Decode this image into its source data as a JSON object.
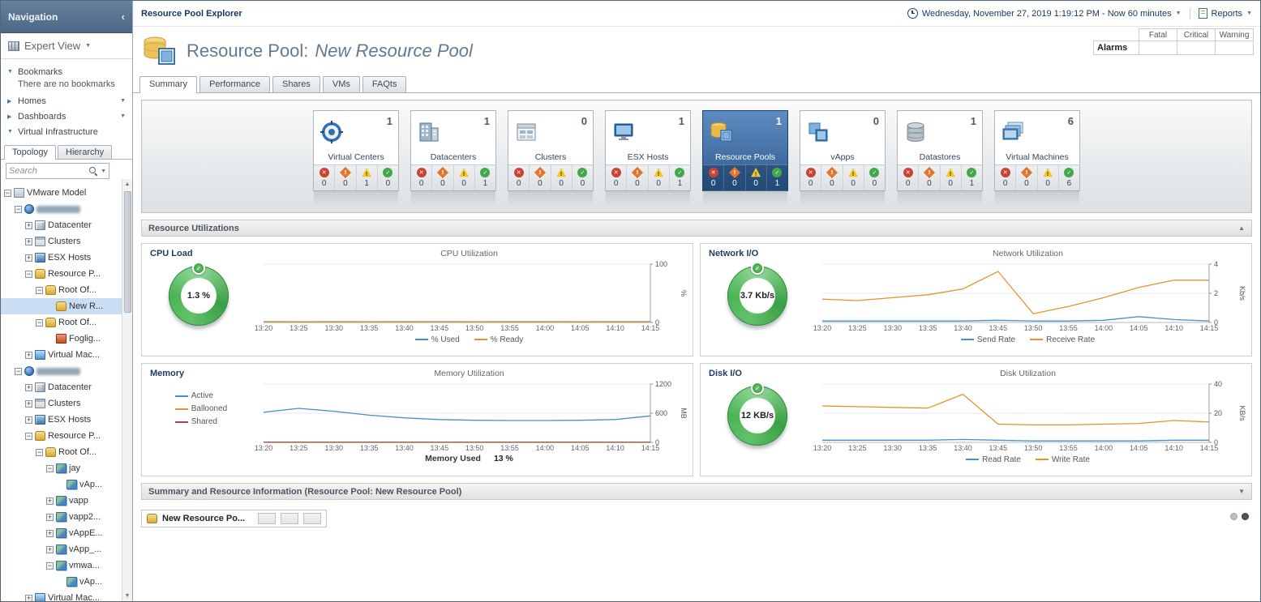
{
  "sidebar": {
    "title": "Navigation",
    "expert_view": "Expert View",
    "bookmarks_label": "Bookmarks",
    "bookmarks_empty": "There are no bookmarks",
    "homes_label": "Homes",
    "dashboards_label": "Dashboards",
    "vi_label": "Virtual Infrastructure",
    "topology_tab": "Topology",
    "hierarchy_tab": "Hierarchy",
    "search_placeholder": "Search",
    "tree": [
      {
        "label": "VMware Model",
        "level": 0,
        "expand": "minus",
        "icon": "model"
      },
      {
        "label": "",
        "level": 1,
        "expand": "minus",
        "icon": "vcenter",
        "blurred": true,
        "blurw": 54
      },
      {
        "label": "Datacenter",
        "level": 2,
        "expand": "plus",
        "icon": "datacenter"
      },
      {
        "label": "Clusters",
        "level": 2,
        "expand": "plus",
        "icon": "cluster"
      },
      {
        "label": "ESX Hosts",
        "level": 2,
        "expand": "plus",
        "icon": "host"
      },
      {
        "label": "Resource P...",
        "level": 2,
        "expand": "minus",
        "icon": "pool"
      },
      {
        "label": "Root Of...",
        "level": 3,
        "expand": "minus",
        "icon": "pool"
      },
      {
        "label": "New R...",
        "level": 4,
        "expand": "none",
        "icon": "pool",
        "selected": true
      },
      {
        "label": "Root Of...",
        "level": 3,
        "expand": "minus",
        "icon": "pool"
      },
      {
        "label": "Foglig...",
        "level": 4,
        "expand": "none",
        "icon": "flag"
      },
      {
        "label": "Virtual Mac...",
        "level": 2,
        "expand": "plus",
        "icon": "vm"
      },
      {
        "label": "",
        "level": 1,
        "expand": "minus",
        "icon": "vcenter",
        "blurred": true,
        "blurw": 54
      },
      {
        "label": "Datacenter",
        "level": 2,
        "expand": "plus",
        "icon": "datacenter"
      },
      {
        "label": "Clusters",
        "level": 2,
        "expand": "plus",
        "icon": "cluster"
      },
      {
        "label": "ESX Hosts",
        "level": 2,
        "expand": "plus",
        "icon": "host"
      },
      {
        "label": "Resource P...",
        "level": 2,
        "expand": "minus",
        "icon": "pool"
      },
      {
        "label": "Root Of...",
        "level": 3,
        "expand": "minus",
        "icon": "pool"
      },
      {
        "label": "jay",
        "level": 4,
        "expand": "minus",
        "icon": "vapp"
      },
      {
        "label": "vAp...",
        "level": 5,
        "expand": "none",
        "icon": "vapp"
      },
      {
        "label": "vapp",
        "level": 4,
        "expand": "plus",
        "icon": "vapp"
      },
      {
        "label": "vapp2...",
        "level": 4,
        "expand": "plus",
        "icon": "vapp"
      },
      {
        "label": "vAppE...",
        "level": 4,
        "expand": "plus",
        "icon": "vapp"
      },
      {
        "label": "vApp_...",
        "level": 4,
        "expand": "plus",
        "icon": "vapp"
      },
      {
        "label": "vmwa...",
        "level": 4,
        "expand": "minus",
        "icon": "vapp"
      },
      {
        "label": "vAp...",
        "level": 5,
        "expand": "none",
        "icon": "vapp"
      },
      {
        "label": "Virtual Mac...",
        "level": 2,
        "expand": "plus",
        "icon": "vm"
      }
    ]
  },
  "topbar": {
    "breadcrumb": "Resource Pool Explorer",
    "timerange": "Wednesday, November 27, 2019 1:19:12 PM - Now 60 minutes",
    "reports_label": "Reports"
  },
  "header": {
    "title_prefix": "Resource Pool:",
    "title_name": "New Resource Pool",
    "alarms": {
      "label": "Alarms",
      "columns": [
        "Fatal",
        "Critical",
        "Warning"
      ],
      "values": [
        "",
        "",
        ""
      ]
    }
  },
  "tabs": [
    {
      "label": "Summary",
      "active": true
    },
    {
      "label": "Performance"
    },
    {
      "label": "Shares"
    },
    {
      "label": "VMs"
    },
    {
      "label": "FAQts"
    }
  ],
  "tiles": [
    {
      "label": "Virtual Centers",
      "count": "1",
      "icon": "virtual-centers",
      "statuses": [
        "0",
        "0",
        "1",
        "0"
      ]
    },
    {
      "label": "Datacenters",
      "count": "1",
      "icon": "datacenters",
      "statuses": [
        "0",
        "0",
        "0",
        "1"
      ]
    },
    {
      "label": "Clusters",
      "count": "0",
      "icon": "clusters",
      "statuses": [
        "0",
        "0",
        "0",
        "0"
      ]
    },
    {
      "label": "ESX Hosts",
      "count": "1",
      "icon": "esx-hosts",
      "statuses": [
        "0",
        "0",
        "0",
        "1"
      ]
    },
    {
      "label": "Resource Pools",
      "count": "1",
      "icon": "resource-pools",
      "selected": true,
      "statuses": [
        "0",
        "0",
        "0",
        "1"
      ]
    },
    {
      "label": "vApps",
      "count": "0",
      "icon": "vapps",
      "statuses": [
        "0",
        "0",
        "0",
        "0"
      ]
    },
    {
      "label": "Datastores",
      "count": "1",
      "icon": "datastores",
      "statuses": [
        "0",
        "0",
        "0",
        "1"
      ]
    },
    {
      "label": "Virtual Machines",
      "count": "6",
      "icon": "virtual-machines",
      "statuses": [
        "0",
        "0",
        "0",
        "6"
      ]
    }
  ],
  "sections": {
    "resource_utilizations": "Resource Utilizations",
    "summary_info": "Summary and Resource Information (Resource Pool: New Resource Pool)"
  },
  "gauges": {
    "cpu": {
      "title": "CPU Load",
      "value": "1.3 %"
    },
    "network": {
      "title": "Network I/O",
      "value": "3.7 Kb/s"
    },
    "memory": {
      "title": "Memory"
    },
    "disk": {
      "title": "Disk I/O",
      "value": "12 KB/s"
    }
  },
  "memory_used": {
    "label": "Memory Used",
    "value": "13 %"
  },
  "chart_data": [
    {
      "panel": "cpu",
      "type": "line",
      "title": "CPU Utilization",
      "x": [
        "13:20",
        "13:25",
        "13:30",
        "13:35",
        "13:40",
        "13:45",
        "13:50",
        "13:55",
        "14:00",
        "14:05",
        "14:10",
        "14:15"
      ],
      "ylim": [
        0,
        100
      ],
      "yticks": [
        0,
        100
      ],
      "yunit": "%",
      "legend_position": "bottom",
      "series": [
        {
          "name": "% Used",
          "color": "#4a90c4",
          "values": [
            1.3,
            1.2,
            1.3,
            1.2,
            1.3,
            1.4,
            1.2,
            1.3,
            1.3,
            1.2,
            1.3,
            1.3
          ]
        },
        {
          "name": "% Ready",
          "color": "#e8922c",
          "values": [
            0.4,
            0.4,
            0.4,
            0.4,
            0.4,
            0.5,
            0.4,
            0.4,
            0.4,
            0.4,
            0.4,
            0.4
          ]
        }
      ]
    },
    {
      "panel": "network",
      "type": "line",
      "title": "Network Utilization",
      "x": [
        "13:20",
        "13:25",
        "13:30",
        "13:35",
        "13:40",
        "13:45",
        "13:50",
        "13:55",
        "14:00",
        "14:05",
        "14:10",
        "14:15"
      ],
      "ylim": [
        0,
        4
      ],
      "yticks": [
        0,
        2,
        4
      ],
      "yunit": "Kb/s",
      "legend_position": "bottom",
      "series": [
        {
          "name": "Send Rate",
          "color": "#4a90c4",
          "values": [
            0.1,
            0.1,
            0.1,
            0.1,
            0.1,
            0.15,
            0.1,
            0.1,
            0.15,
            0.4,
            0.2,
            0.1
          ]
        },
        {
          "name": "Receive Rate",
          "color": "#e8922c",
          "values": [
            1.6,
            1.5,
            1.7,
            1.9,
            2.3,
            3.5,
            0.6,
            1.1,
            1.7,
            2.4,
            2.9,
            2.9
          ]
        }
      ]
    },
    {
      "panel": "memory",
      "type": "line",
      "title": "Memory Utilization",
      "x": [
        "13:20",
        "13:25",
        "13:30",
        "13:35",
        "13:40",
        "13:45",
        "13:50",
        "13:55",
        "14:00",
        "14:05",
        "14:10",
        "14:15"
      ],
      "ylim": [
        0,
        1200
      ],
      "yticks": [
        0,
        600,
        1200
      ],
      "yunit": "MB",
      "legend_position": "left",
      "series": [
        {
          "name": "Active",
          "color": "#4a90c4",
          "values": [
            620,
            700,
            640,
            560,
            505,
            470,
            455,
            450,
            450,
            455,
            470,
            545
          ]
        },
        {
          "name": "Ballooned",
          "color": "#e8922c",
          "values": [
            5,
            5,
            5,
            5,
            5,
            5,
            5,
            5,
            5,
            5,
            5,
            5
          ]
        },
        {
          "name": "Shared",
          "color": "#9e4a4a",
          "values": [
            2,
            2,
            2,
            2,
            2,
            2,
            2,
            2,
            2,
            2,
            2,
            2
          ]
        }
      ]
    },
    {
      "panel": "disk",
      "type": "line",
      "title": "Disk Utilization",
      "x": [
        "13:20",
        "13:25",
        "13:30",
        "13:35",
        "13:40",
        "13:45",
        "13:50",
        "13:55",
        "14:00",
        "14:05",
        "14:10",
        "14:15"
      ],
      "ylim": [
        0,
        40
      ],
      "yticks": [
        0,
        20,
        40
      ],
      "yunit": "KB/s",
      "legend_position": "bottom",
      "series": [
        {
          "name": "Read Rate",
          "color": "#4a90c4",
          "values": [
            1.5,
            1.5,
            1.5,
            1.5,
            2,
            1.5,
            1,
            1,
            1,
            1,
            1.5,
            1.5
          ]
        },
        {
          "name": "Write Rate",
          "color": "#e8922c",
          "values": [
            25,
            24.5,
            24,
            23.5,
            33,
            12.5,
            12,
            12,
            12.5,
            13,
            15,
            14
          ]
        }
      ]
    }
  ],
  "bottom": {
    "item_label": "New Resource Po..."
  }
}
